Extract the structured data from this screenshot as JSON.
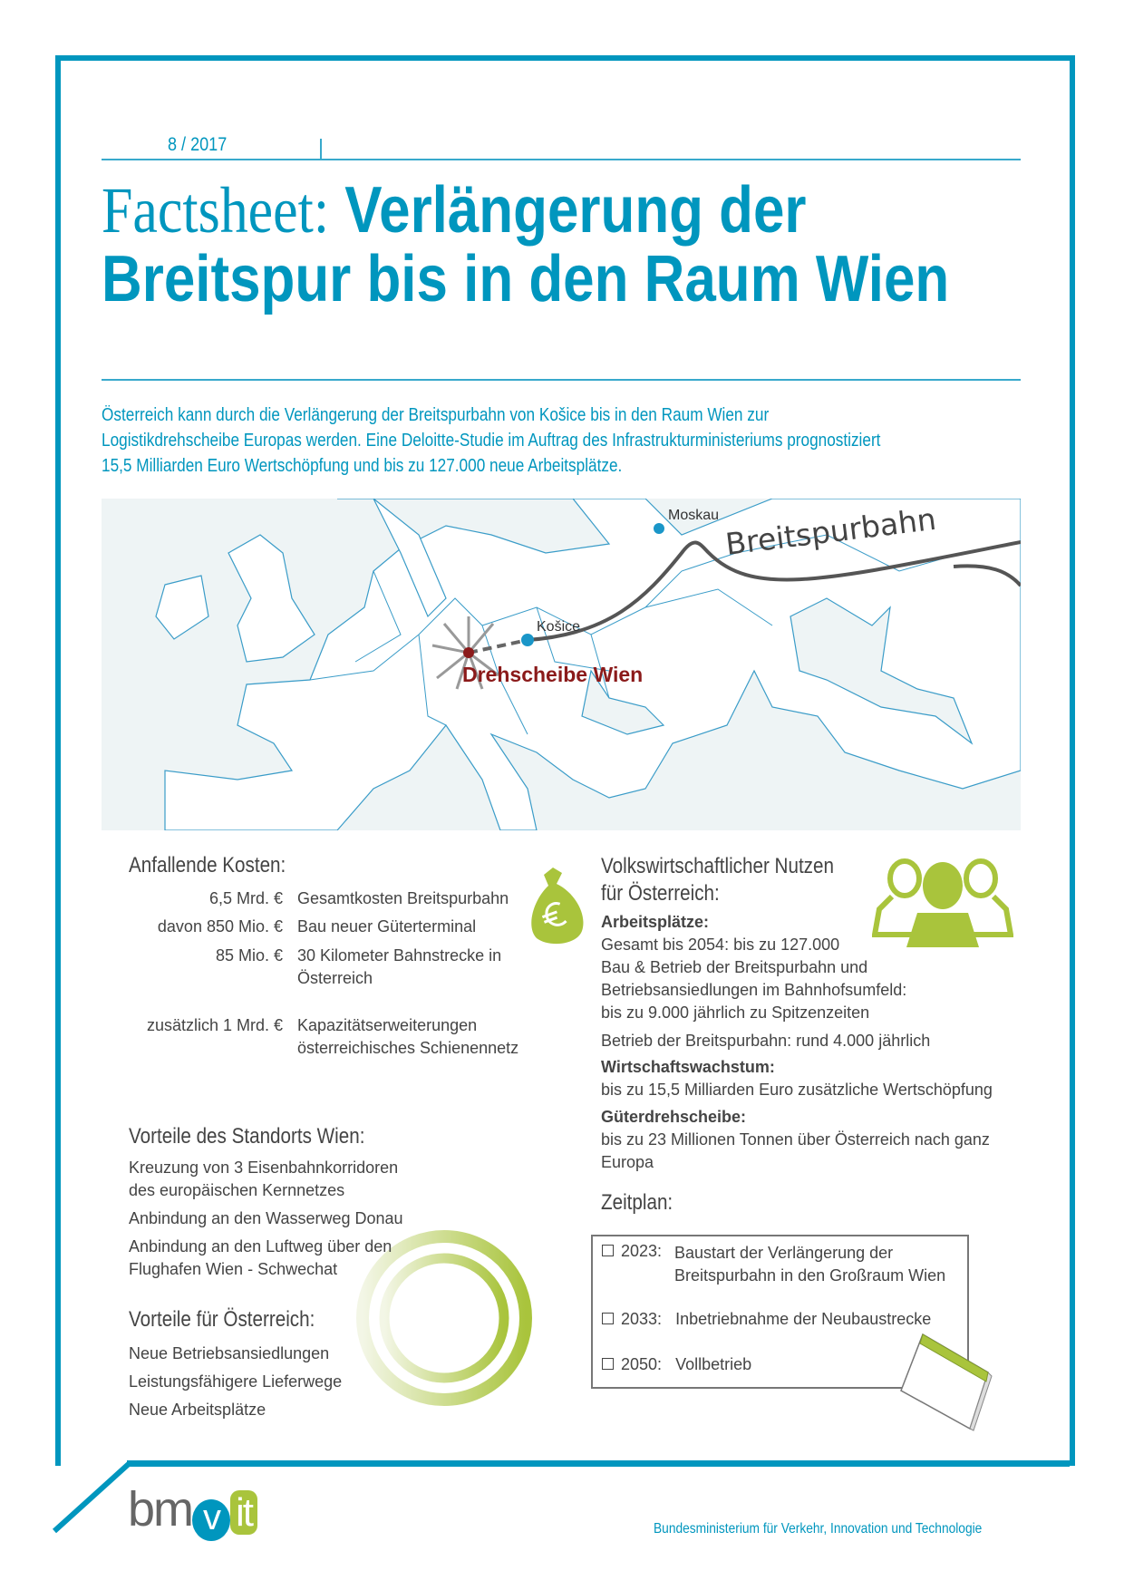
{
  "header": {
    "issue": "8 / 2017"
  },
  "title": {
    "prefix": "Factsheet:",
    "line1": "Verlängerung der",
    "line2": "Breitspur bis in den Raum Wien"
  },
  "intro": [
    "Österreich kann durch die Verlängerung der Breitspurbahn von Košice bis in den Raum Wien zur",
    "Logistikdrehscheibe Europas werden. Eine Deloitte-Studie im Auftrag des Infrastrukturministeriums prognostiziert",
    "15,5 Milliarden Euro Wertschöpfung und bis zu 127.000 neue Arbeitsplätze."
  ],
  "map": {
    "city_moscow": "Moskau",
    "city_kosice": "Košice",
    "hub_label": "Drehscheibe Wien",
    "rail_label": "Breitspurbahn",
    "colors": {
      "sea": "#eef4f5",
      "border": "#3a9cc8",
      "hub": "#8b1a1a",
      "city": "#1a96c8",
      "rail": "#555555"
    }
  },
  "costs": {
    "heading": "Anfallende Kosten:",
    "rows": [
      {
        "amount": "6,5 Mrd. €",
        "desc": [
          "Gesamtkosten Breitspurbahn"
        ]
      },
      {
        "amount": "davon 850 Mio. €",
        "desc": [
          "Bau neuer Güterterminal"
        ]
      },
      {
        "amount": "85 Mio. €",
        "desc": [
          "30 Kilometer Bahnstrecke in",
          "Österreich"
        ]
      },
      {
        "amount": "zusätzlich 1 Mrd. €",
        "desc": [
          "Kapazitätserweiterungen",
          "österreichisches Schienennetz"
        ]
      }
    ]
  },
  "vienna": {
    "heading": "Vorteile des Standorts Wien:",
    "items": [
      "Kreuzung von 3 Eisenbahnkorridoren",
      "des europäischen Kernnetzes",
      "Anbindung an den Wasserweg Donau",
      "Anbindung an den Luftweg über den",
      "Flughafen Wien - Schwechat"
    ]
  },
  "austria": {
    "heading": "Vorteile für Österreich:",
    "items": [
      "Neue Betriebsansiedlungen",
      "Leistungsfähigere Lieferwege",
      "Neue Arbeitsplätze"
    ]
  },
  "benefit": {
    "heading1": "Volkswirtschaftlicher Nutzen",
    "heading2": "für Österreich:",
    "jobs_label": "Arbeitsplätze:",
    "jobs": [
      "Gesamt bis 2054: bis zu 127.000",
      "Bau & Betrieb der Breitspurbahn und",
      "Betriebsansiedlungen im Bahnhofsumfeld:",
      "bis zu 9.000 jährlich zu Spitzenzeiten",
      "Betrieb der Breitspurbahn: rund 4.000 jährlich"
    ],
    "growth_label": "Wirtschaftswachstum:",
    "growth": "bis zu 15,5 Milliarden Euro zusätzliche Wertschöpfung",
    "hub_label": "Güterdrehscheibe:",
    "hub": [
      "bis zu 23 Millionen Tonnen über Österreich nach ganz",
      "Europa"
    ]
  },
  "schedule": {
    "heading": "Zeitplan:",
    "items": [
      {
        "year": "2023:",
        "text": [
          "Baustart der  Verlängerung der",
          "Breitspurbahn in den Großraum Wien"
        ]
      },
      {
        "year": "2033:",
        "text": [
          "Inbetriebnahme der Neubaustrecke"
        ]
      },
      {
        "year": "2050:",
        "text": [
          "Vollbetrieb"
        ]
      }
    ]
  },
  "footer": {
    "logo": "bmvit",
    "ministry": "Bundesministerium für Verkehr, Innovation und Technologie"
  },
  "colors": {
    "accent": "#0096be",
    "green": "#a9c43c",
    "text": "#444444"
  }
}
